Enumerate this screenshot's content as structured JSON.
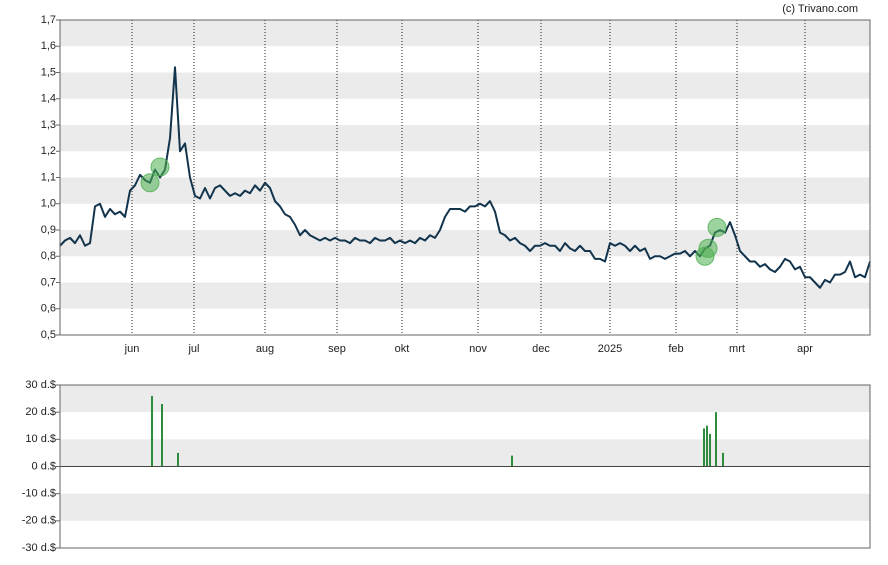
{
  "source": "(c) Trivano.com",
  "chart_data": [
    {
      "type": "line",
      "xlim": [
        0,
        162
      ],
      "xticks": [
        {
          "value": 14.4,
          "label": "jun"
        },
        {
          "value": 26.8,
          "label": "jul"
        },
        {
          "value": 41,
          "label": "aug"
        },
        {
          "value": 55.4,
          "label": "sep"
        },
        {
          "value": 68.4,
          "label": "okt"
        },
        {
          "value": 83.6,
          "label": "nov"
        },
        {
          "value": 96.2,
          "label": "dec"
        },
        {
          "value": 110,
          "label": "2025"
        },
        {
          "value": 123.2,
          "label": "feb"
        },
        {
          "value": 135.4,
          "label": "mrt"
        },
        {
          "value": 149,
          "label": "apr"
        }
      ],
      "ylim": [
        0.5,
        1.7
      ],
      "yticks": [
        {
          "value": 0.5,
          "label": "0,5"
        },
        {
          "value": 0.6,
          "label": "0,6"
        },
        {
          "value": 0.7,
          "label": "0,7"
        },
        {
          "value": 0.8,
          "label": "0,8"
        },
        {
          "value": 0.9,
          "label": "0,9"
        },
        {
          "value": 1.0,
          "label": "1,0"
        },
        {
          "value": 1.1,
          "label": "1,1"
        },
        {
          "value": 1.2,
          "label": "1,2"
        },
        {
          "value": 1.3,
          "label": "1,3"
        },
        {
          "value": 1.4,
          "label": "1,4"
        },
        {
          "value": 1.5,
          "label": "1,5"
        },
        {
          "value": 1.6,
          "label": "1,6"
        },
        {
          "value": 1.7,
          "label": "1,7"
        }
      ],
      "grid": "bands",
      "series": [
        {
          "color": "#12344d",
          "values": [
            0.84,
            0.86,
            0.87,
            0.85,
            0.88,
            0.84,
            0.85,
            0.99,
            1.0,
            0.95,
            0.98,
            0.96,
            0.97,
            0.95,
            1.05,
            1.07,
            1.11,
            1.09,
            1.08,
            1.13,
            1.1,
            1.13,
            1.25,
            1.52,
            1.2,
            1.23,
            1.1,
            1.03,
            1.02,
            1.06,
            1.02,
            1.06,
            1.07,
            1.05,
            1.03,
            1.04,
            1.03,
            1.05,
            1.04,
            1.07,
            1.05,
            1.08,
            1.06,
            1.01,
            0.99,
            0.96,
            0.95,
            0.92,
            0.88,
            0.9,
            0.88,
            0.87,
            0.86,
            0.87,
            0.86,
            0.87,
            0.86,
            0.86,
            0.85,
            0.87,
            0.86,
            0.86,
            0.85,
            0.87,
            0.86,
            0.86,
            0.87,
            0.85,
            0.86,
            0.85,
            0.86,
            0.85,
            0.87,
            0.86,
            0.88,
            0.87,
            0.9,
            0.95,
            0.98,
            0.98,
            0.98,
            0.97,
            0.99,
            0.99,
            1.0,
            0.99,
            1.01,
            0.97,
            0.89,
            0.88,
            0.86,
            0.87,
            0.85,
            0.84,
            0.82,
            0.84,
            0.84,
            0.85,
            0.84,
            0.84,
            0.82,
            0.85,
            0.83,
            0.82,
            0.84,
            0.82,
            0.82,
            0.79,
            0.79,
            0.78,
            0.85,
            0.84,
            0.85,
            0.84,
            0.82,
            0.84,
            0.82,
            0.83,
            0.79,
            0.8,
            0.8,
            0.79,
            0.8,
            0.81,
            0.81,
            0.82,
            0.8,
            0.82,
            0.8,
            0.83,
            0.84,
            0.89,
            0.9,
            0.89,
            0.93,
            0.88,
            0.82,
            0.8,
            0.78,
            0.78,
            0.76,
            0.77,
            0.75,
            0.74,
            0.76,
            0.79,
            0.78,
            0.75,
            0.76,
            0.72,
            0.72,
            0.7,
            0.68,
            0.71,
            0.7,
            0.73,
            0.73,
            0.74,
            0.78,
            0.72,
            0.73,
            0.72,
            0.78
          ]
        }
      ],
      "markers": {
        "color": "#4caf50",
        "x": [
          18,
          20,
          129,
          129.6,
          131.4
        ],
        "values": [
          1.08,
          1.14,
          0.8,
          0.83,
          0.91
        ]
      }
    },
    {
      "type": "bar",
      "xlim": [
        0,
        162
      ],
      "ylim": [
        -30,
        30
      ],
      "yticks": [
        {
          "value": -30,
          "label": "-30 d.$"
        },
        {
          "value": -20,
          "label": "-20 d.$"
        },
        {
          "value": -10,
          "label": "-10 d.$"
        },
        {
          "value": 0,
          "label": "0 d.$"
        },
        {
          "value": 10,
          "label": "10 d.$"
        },
        {
          "value": 20,
          "label": "20 d.$"
        },
        {
          "value": 30,
          "label": "30 d.$"
        }
      ],
      "grid": "bands",
      "color": "#2e8b3e",
      "x": [
        18.4,
        20.4,
        23.6,
        90.4,
        128.8,
        129.4,
        130,
        131.2,
        132.6
      ],
      "values": [
        26,
        23,
        5,
        4,
        14,
        15,
        12,
        20,
        5
      ]
    }
  ]
}
